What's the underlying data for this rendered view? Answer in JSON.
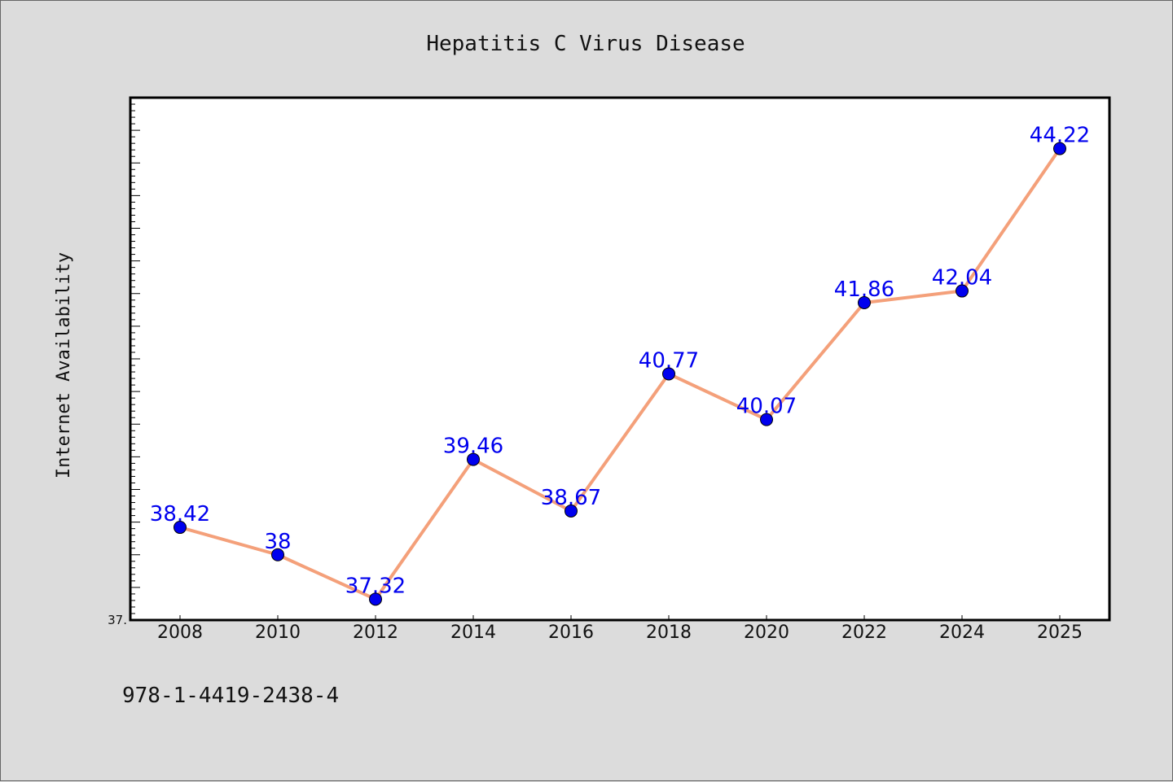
{
  "chart_data": {
    "type": "line",
    "title": "Hepatitis C Virus Disease",
    "xlabel": "",
    "ylabel": "Internet Availability",
    "categories": [
      "2008",
      "2010",
      "2012",
      "2014",
      "2016",
      "2018",
      "2020",
      "2022",
      "2024",
      "2025"
    ],
    "series": [
      {
        "values": [
          38.42,
          38,
          37.32,
          39.46,
          38.67,
          40.77,
          40.07,
          41.86,
          42.04,
          44.22
        ],
        "labels": [
          "38.42",
          "38",
          "37.32",
          "39.46",
          "38.67",
          "40.77",
          "40.07",
          "41.86",
          "42.04",
          "44.22"
        ]
      }
    ],
    "ylim": [
      37.0,
      45.0
    ],
    "ytick_label": "37.",
    "grid": false,
    "legend": "none",
    "colors": {
      "line": "#f4a07a",
      "marker": "#0000ee",
      "label": "#0000ee"
    }
  },
  "footer": {
    "isbn": "978-1-4419-2438-4"
  }
}
